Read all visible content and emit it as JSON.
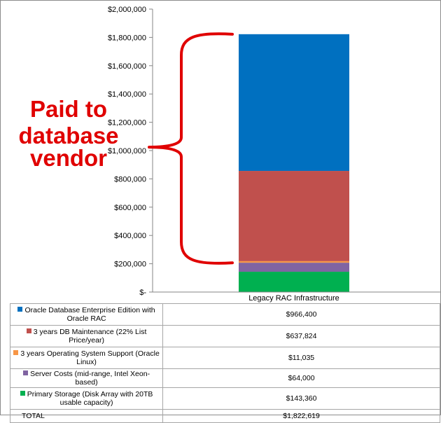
{
  "chart_data": {
    "type": "bar",
    "stacked": true,
    "categories": [
      "Legacy RAC Infrastructure"
    ],
    "ylim": [
      0,
      2000000
    ],
    "yticks": [
      {
        "value": 0,
        "label": "$-"
      },
      {
        "value": 200000,
        "label": "$200,000"
      },
      {
        "value": 400000,
        "label": "$400,000"
      },
      {
        "value": 600000,
        "label": "$600,000"
      },
      {
        "value": 800000,
        "label": "$800,000"
      },
      {
        "value": 1000000,
        "label": "$1,000,000"
      },
      {
        "value": 1200000,
        "label": "$1,200,000"
      },
      {
        "value": 1400000,
        "label": "$1,400,000"
      },
      {
        "value": 1600000,
        "label": "$1,600,000"
      },
      {
        "value": 1800000,
        "label": "$1,800,000"
      },
      {
        "value": 2000000,
        "label": "$2,000,000"
      }
    ],
    "stack_order_bottom_to_top": [
      4,
      3,
      2,
      1,
      0
    ],
    "series": [
      {
        "name": "Oracle Database Enterprise Edition with Oracle RAC",
        "values": [
          966400
        ],
        "label": "$966,400",
        "color": "#0070c0",
        "two_line": true
      },
      {
        "name": "3 years DB Maintenance (22% List Price/year)",
        "values": [
          637824
        ],
        "label": "$637,824",
        "color": "#c0504d",
        "two_line": true
      },
      {
        "name": "3 years Operating System Support (Oracle Linux)",
        "values": [
          11035
        ],
        "label": "$11,035",
        "color": "#f79646",
        "two_line": true
      },
      {
        "name": "Server Costs (mid-range, Intel Xeon-based)",
        "values": [
          64000
        ],
        "label": "$64,000",
        "color": "#8064a2",
        "two_line": false
      },
      {
        "name": "Primary Storage (Disk Array with 20TB usable capacity)",
        "values": [
          143360
        ],
        "label": "$143,360",
        "color": "#00b050",
        "two_line": true
      }
    ],
    "total": {
      "name": "TOTAL",
      "label": "$1,822,619"
    },
    "annotation": {
      "lines": [
        "Paid to",
        "database",
        "vendor"
      ],
      "color": "#e00000",
      "brace_from": 206400,
      "brace_to": 1822619
    },
    "grid": false
  }
}
